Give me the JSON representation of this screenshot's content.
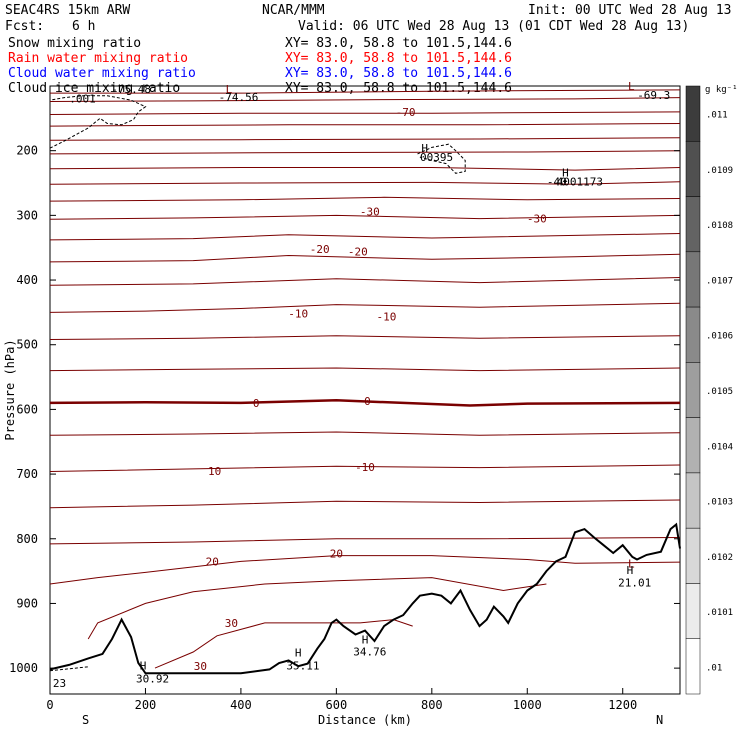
{
  "header": {
    "model": "SEAC4RS 15km ARW",
    "center": "NCAR/MMM",
    "init": "Init: 00 UTC Wed 28 Aug 13",
    "fcst_label": "Fcst:",
    "fcst_value": "6 h",
    "valid": "Valid: 06 UTC Wed 28 Aug 13 (01 CDT Wed 28 Aug 13)",
    "rows": [
      {
        "field": "Snow mixing ratio",
        "xy": "XY=  83.0, 58.8 to 101.5,144.6",
        "color": "#000000"
      },
      {
        "field": "Rain water mixing ratio",
        "xy": "XY=  83.0, 58.8 to 101.5,144.6",
        "color": "#ff0000"
      },
      {
        "field": "Cloud water mixing ratio",
        "xy": "XY=  83.0, 58.8 to 101.5,144.6",
        "color": "#0000ff"
      },
      {
        "field": "Cloud ice mixing ratio",
        "xy": "XY=  83.0, 58.8 to 101.5,144.6",
        "color": "#000000"
      }
    ]
  },
  "colorbar": {
    "unit": "g kg⁻¹",
    "labels": [
      ".011",
      ".0109",
      ".0108",
      ".0107",
      ".0106",
      ".0105",
      ".0104",
      ".0103",
      ".0102",
      ".0101",
      ".01"
    ]
  },
  "colors": {
    "isotherm": "#7a0000",
    "terrain": "#000000",
    "cloud_ice": "#000000"
  },
  "chart_data": {
    "type": "contour_cross_section",
    "xlabel": "Distance (km)",
    "ylabel": "Pressure (hPa)",
    "xlim": [
      0,
      1320
    ],
    "ylim": [
      1040,
      100
    ],
    "x_ticks": [
      "0",
      "200",
      "400",
      "600",
      "800",
      "1000",
      "1200"
    ],
    "y_ticks": [
      "200",
      "300",
      "400",
      "500",
      "600",
      "700",
      "800",
      "900",
      "1000"
    ],
    "x_end_labels": {
      "left": "S",
      "right": "N"
    },
    "isotherms": [
      {
        "p": [
          [
            0,
            111
          ],
          [
            400,
            111
          ],
          [
            800,
            108
          ],
          [
            1320,
            106
          ]
        ],
        "width": 1
      },
      {
        "p": [
          [
            0,
            124
          ],
          [
            300,
            123
          ],
          [
            700,
            121
          ],
          [
            1100,
            120
          ],
          [
            1320,
            118
          ]
        ],
        "width": 1
      },
      {
        "p": [
          [
            0,
            144
          ],
          [
            400,
            142
          ],
          [
            800,
            142
          ],
          [
            1320,
            140
          ]
        ],
        "width": 1
      },
      {
        "p": [
          [
            0,
            162
          ],
          [
            500,
            160
          ],
          [
            900,
            160
          ],
          [
            1320,
            158
          ]
        ],
        "width": 1
      },
      {
        "p": [
          [
            0,
            184
          ],
          [
            400,
            183
          ],
          [
            900,
            182
          ],
          [
            1320,
            180
          ]
        ],
        "width": 1
      },
      {
        "p": [
          [
            0,
            205
          ],
          [
            500,
            203
          ],
          [
            1000,
            202
          ],
          [
            1320,
            200
          ]
        ],
        "width": 1
      },
      {
        "p": [
          [
            0,
            228
          ],
          [
            400,
            226
          ],
          [
            800,
            226
          ],
          [
            1100,
            230
          ],
          [
            1320,
            226
          ]
        ],
        "width": 1
      },
      {
        "p": [
          [
            0,
            252
          ],
          [
            400,
            250
          ],
          [
            800,
            249
          ],
          [
            1100,
            252
          ],
          [
            1320,
            248
          ]
        ],
        "width": 1
      },
      {
        "p": [
          [
            0,
            278
          ],
          [
            400,
            276
          ],
          [
            700,
            272
          ],
          [
            1000,
            276
          ],
          [
            1320,
            274
          ]
        ],
        "width": 1
      },
      {
        "p": [
          [
            0,
            306
          ],
          [
            300,
            304
          ],
          [
            600,
            300
          ],
          [
            900,
            305
          ],
          [
            1320,
            300
          ]
        ],
        "width": 1
      },
      {
        "p": [
          [
            0,
            338
          ],
          [
            300,
            336
          ],
          [
            500,
            330
          ],
          [
            800,
            335
          ],
          [
            1100,
            331
          ],
          [
            1320,
            328
          ]
        ],
        "width": 1
      },
      {
        "p": [
          [
            0,
            372
          ],
          [
            300,
            370
          ],
          [
            500,
            362
          ],
          [
            800,
            368
          ],
          [
            1100,
            364
          ],
          [
            1320,
            360
          ]
        ],
        "width": 1
      },
      {
        "p": [
          [
            0,
            408
          ],
          [
            300,
            406
          ],
          [
            600,
            398
          ],
          [
            900,
            404
          ],
          [
            1320,
            396
          ]
        ],
        "width": 1
      },
      {
        "p": [
          [
            0,
            450
          ],
          [
            200,
            448
          ],
          [
            400,
            444
          ],
          [
            600,
            438
          ],
          [
            900,
            442
          ],
          [
            1320,
            436
          ]
        ],
        "width": 1
      },
      {
        "p": [
          [
            0,
            492
          ],
          [
            300,
            490
          ],
          [
            600,
            486
          ],
          [
            900,
            490
          ],
          [
            1320,
            486
          ]
        ],
        "width": 1
      },
      {
        "p": [
          [
            0,
            540
          ],
          [
            300,
            538
          ],
          [
            600,
            536
          ],
          [
            900,
            540
          ],
          [
            1320,
            536
          ]
        ],
        "width": 1
      },
      {
        "p": [
          [
            0,
            590
          ],
          [
            200,
            589
          ],
          [
            400,
            590
          ],
          [
            600,
            586
          ],
          [
            880,
            594
          ],
          [
            1000,
            591
          ],
          [
            1320,
            590
          ]
        ],
        "width": 2.5
      },
      {
        "p": [
          [
            0,
            640
          ],
          [
            300,
            638
          ],
          [
            600,
            635
          ],
          [
            900,
            640
          ],
          [
            1320,
            636
          ]
        ],
        "width": 1
      },
      {
        "p": [
          [
            0,
            696
          ],
          [
            300,
            692
          ],
          [
            600,
            688
          ],
          [
            900,
            690
          ],
          [
            1320,
            686
          ]
        ],
        "width": 1
      },
      {
        "p": [
          [
            0,
            752
          ],
          [
            300,
            748
          ],
          [
            600,
            742
          ],
          [
            900,
            744
          ],
          [
            1320,
            740
          ]
        ],
        "width": 1
      },
      {
        "p": [
          [
            0,
            808
          ],
          [
            300,
            805
          ],
          [
            600,
            800
          ],
          [
            900,
            800
          ],
          [
            1320,
            798
          ]
        ],
        "width": 1
      },
      {
        "p": [
          [
            0,
            870
          ],
          [
            100,
            860
          ],
          [
            200,
            852
          ],
          [
            400,
            835
          ],
          [
            600,
            826
          ],
          [
            800,
            826
          ],
          [
            1000,
            832
          ],
          [
            1100,
            838
          ],
          [
            1320,
            836
          ]
        ],
        "width": 1
      },
      {
        "p": [
          [
            80,
            955
          ],
          [
            100,
            930
          ],
          [
            200,
            900
          ],
          [
            300,
            882
          ],
          [
            450,
            870
          ],
          [
            600,
            865
          ],
          [
            800,
            860
          ],
          [
            950,
            880
          ],
          [
            1040,
            870
          ]
        ],
        "width": 1
      },
      {
        "p": [
          [
            220,
            1000
          ],
          [
            300,
            975
          ],
          [
            350,
            950
          ],
          [
            450,
            930
          ],
          [
            550,
            930
          ],
          [
            650,
            930
          ],
          [
            720,
            925
          ],
          [
            760,
            935
          ]
        ],
        "width": 1
      }
    ],
    "terrain": [
      [
        0,
        1002
      ],
      [
        40,
        995
      ],
      [
        80,
        985
      ],
      [
        110,
        978
      ],
      [
        130,
        955
      ],
      [
        150,
        925
      ],
      [
        170,
        952
      ],
      [
        185,
        992
      ],
      [
        200,
        1008
      ],
      [
        300,
        1008
      ],
      [
        400,
        1008
      ],
      [
        460,
        1002
      ],
      [
        480,
        992
      ],
      [
        500,
        988
      ],
      [
        520,
        997
      ],
      [
        540,
        993
      ],
      [
        560,
        970
      ],
      [
        575,
        955
      ],
      [
        590,
        930
      ],
      [
        600,
        925
      ],
      [
        615,
        935
      ],
      [
        640,
        948
      ],
      [
        660,
        942
      ],
      [
        680,
        958
      ],
      [
        700,
        935
      ],
      [
        720,
        925
      ],
      [
        740,
        918
      ],
      [
        760,
        900
      ],
      [
        775,
        888
      ],
      [
        800,
        885
      ],
      [
        820,
        888
      ],
      [
        840,
        900
      ],
      [
        860,
        880
      ],
      [
        880,
        910
      ],
      [
        900,
        935
      ],
      [
        915,
        925
      ],
      [
        930,
        905
      ],
      [
        950,
        920
      ],
      [
        960,
        930
      ],
      [
        980,
        900
      ],
      [
        1000,
        880
      ],
      [
        1020,
        870
      ],
      [
        1040,
        850
      ],
      [
        1060,
        835
      ],
      [
        1080,
        828
      ],
      [
        1100,
        790
      ],
      [
        1120,
        785
      ],
      [
        1140,
        798
      ],
      [
        1160,
        810
      ],
      [
        1180,
        822
      ],
      [
        1200,
        810
      ],
      [
        1220,
        828
      ],
      [
        1230,
        832
      ],
      [
        1250,
        825
      ],
      [
        1280,
        820
      ],
      [
        1300,
        785
      ],
      [
        1312,
        778
      ],
      [
        1320,
        815
      ]
    ],
    "cloud_ice": [
      {
        "p": [
          [
            0,
            196
          ],
          [
            30,
            185
          ],
          [
            80,
            165
          ],
          [
            105,
            150
          ],
          [
            120,
            158
          ],
          [
            150,
            160
          ],
          [
            175,
            152
          ],
          [
            185,
            140
          ],
          [
            200,
            132
          ],
          [
            170,
            122
          ],
          [
            120,
            115
          ],
          [
            70,
            115
          ],
          [
            30,
            118
          ],
          [
            0,
            122
          ]
        ]
      },
      {
        "p": [
          [
            770,
            205
          ],
          [
            800,
            195
          ],
          [
            835,
            190
          ],
          [
            850,
            200
          ],
          [
            870,
            215
          ],
          [
            870,
            232
          ],
          [
            850,
            235
          ],
          [
            830,
            220
          ],
          [
            800,
            215
          ],
          [
            775,
            210
          ]
        ]
      },
      {
        "p": [
          [
            0,
            1004
          ],
          [
            40,
            1001
          ],
          [
            80,
            998
          ]
        ]
      }
    ],
    "contour_labels": [
      {
        "text": "-70",
        "x": 745,
        "y": 140
      },
      {
        "text": "-30",
        "x": 670,
        "y": 294
      },
      {
        "text": "-30",
        "x": 1020,
        "y": 305
      },
      {
        "text": "-20",
        "x": 565,
        "y": 352
      },
      {
        "text": "-20",
        "x": 645,
        "y": 356
      },
      {
        "text": "-10",
        "x": 520,
        "y": 452
      },
      {
        "text": "-10",
        "x": 705,
        "y": 456
      },
      {
        "text": "0",
        "x": 432,
        "y": 590
      },
      {
        "text": "0",
        "x": 665,
        "y": 587
      },
      {
        "text": "-10",
        "x": 660,
        "y": 689
      },
      {
        "text": "10",
        "x": 345,
        "y": 695
      },
      {
        "text": "20",
        "x": 340,
        "y": 835
      },
      {
        "text": "20",
        "x": 600,
        "y": 823
      },
      {
        "text": "30",
        "x": 380,
        "y": 930
      },
      {
        "text": "30",
        "x": 315,
        "y": 997
      },
      {
        "text": "L",
        "x": 375,
        "y": 105
      },
      {
        "text": "L",
        "x": 1218,
        "y": 100
      },
      {
        "text": "L",
        "x": 1218,
        "y": 838
      }
    ],
    "extrema": [
      {
        "text": "-75.48",
        "x": 170,
        "y": 105
      },
      {
        "text": ".001",
        "x": 68,
        "y": 119
      },
      {
        "text": "-74.56",
        "x": 395,
        "y": 117
      },
      {
        "text": "-69.3",
        "x": 1265,
        "y": 114
      },
      {
        "text": "H",
        "x": 785,
        "y": 196
      },
      {
        "text": "00395",
        "x": 810,
        "y": 210
      },
      {
        "text": "H",
        "x": 1080,
        "y": 234
      },
      {
        "text": "-40",
        "x": 1062,
        "y": 248
      },
      {
        "text": "4001173",
        "x": 1110,
        "y": 248
      },
      {
        "text": "H",
        "x": 195,
        "y": 996
      },
      {
        "text": "30.92",
        "x": 215,
        "y": 1016
      },
      {
        "text": "H",
        "x": 520,
        "y": 976
      },
      {
        "text": "35.11",
        "x": 530,
        "y": 996
      },
      {
        "text": "H",
        "x": 660,
        "y": 956
      },
      {
        "text": "34.76",
        "x": 670,
        "y": 974
      },
      {
        "text": "H",
        "x": 1215,
        "y": 848
      },
      {
        "text": "21.01",
        "x": 1225,
        "y": 868
      },
      {
        "text": "23",
        "x": 20,
        "y": 1023
      }
    ]
  }
}
